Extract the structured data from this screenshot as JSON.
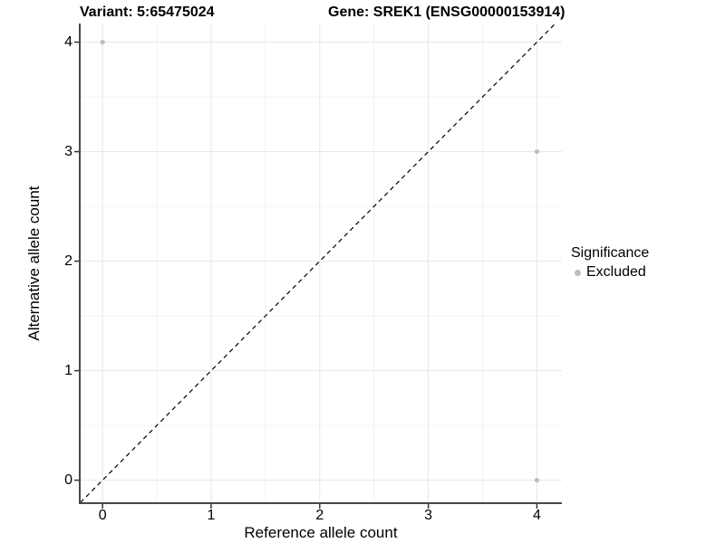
{
  "chart_data": {
    "type": "scatter",
    "title_left": "Variant: 5:65475024",
    "title_right": "Gene: SREK1 (ENSG00000153914)",
    "xlabel": "Reference allele count",
    "ylabel": "Alternative allele count",
    "x_ticks": [
      0,
      1,
      2,
      3,
      4
    ],
    "y_ticks": [
      0,
      1,
      2,
      3,
      4
    ],
    "xlim": [
      -0.21,
      4.23
    ],
    "ylim": [
      -0.21,
      4.17
    ],
    "grid": {
      "major": true,
      "minor": true,
      "minor_step": 0.5
    },
    "reference_line": {
      "kind": "identity y=x",
      "style": "dashed",
      "color": "#000000"
    },
    "series": [
      {
        "name": "Excluded",
        "color": "#bdbdbd",
        "points": [
          {
            "x": 0,
            "y": 4
          },
          {
            "x": 4,
            "y": 3
          },
          {
            "x": 4,
            "y": 0
          }
        ]
      }
    ],
    "legend": {
      "title": "Significance",
      "position": "right",
      "entries": [
        {
          "label": "Excluded",
          "color": "#bdbdbd"
        }
      ]
    },
    "colors": {
      "major_grid": "#e6e6e6",
      "minor_grid": "#f2f2f2",
      "axis_line": "#474747",
      "tick_mark": "#333333",
      "text": "#000000",
      "background": "#ffffff"
    }
  }
}
